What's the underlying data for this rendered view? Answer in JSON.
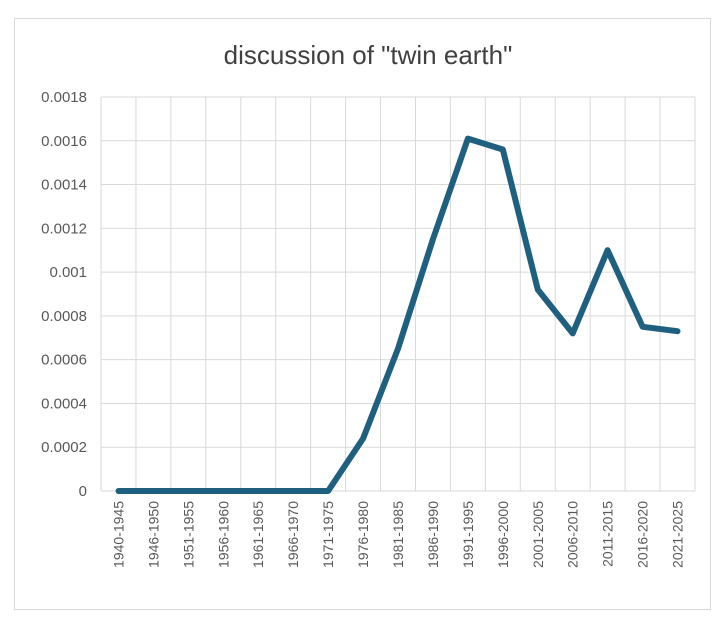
{
  "chart_data": {
    "type": "line",
    "title": "discussion of \"twin earth\"",
    "xlabel": "",
    "ylabel": "",
    "categories": [
      "1940-1945",
      "1946-1950",
      "1951-1955",
      "1956-1960",
      "1961-1965",
      "1966-1970",
      "1971-1975",
      "1976-1980",
      "1981-1985",
      "1986-1990",
      "1991-1995",
      "1996-2000",
      "2001-2005",
      "2006-2010",
      "2011-2015",
      "2016-2020",
      "2021-2025"
    ],
    "series": [
      {
        "values": [
          0,
          0,
          0,
          0,
          0,
          0,
          0,
          0.00024,
          0.00065,
          0.00115,
          0.00161,
          0.00156,
          0.00092,
          0.00072,
          0.0011,
          0.00075,
          0.00073
        ]
      }
    ],
    "ylim": [
      0,
      0.0018
    ],
    "yticks": [
      "0",
      "0.0002",
      "0.0004",
      "0.0006",
      "0.0008",
      "0.001",
      "0.0012",
      "0.0014",
      "0.0016",
      "0.0018"
    ],
    "grid": true,
    "legend": "none",
    "line_color": "#1f5f7f",
    "grid_color": "#d9d9d9"
  }
}
